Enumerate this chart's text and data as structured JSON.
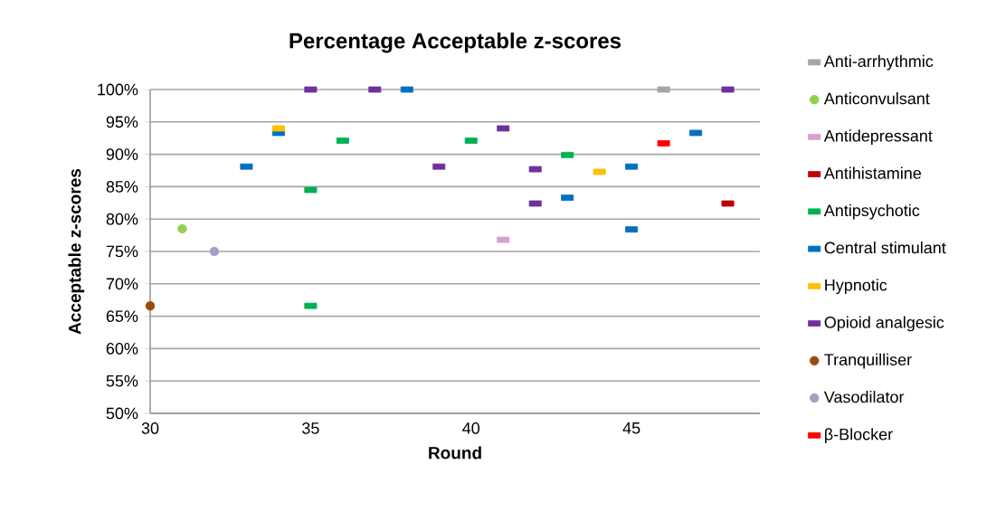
{
  "chart_data": {
    "type": "scatter",
    "title": "Percentage Acceptable z-scores",
    "xlabel": "Round",
    "ylabel": "Acceptable z-scores",
    "xlim": [
      30,
      49
    ],
    "xticks": [
      30,
      35,
      40,
      45
    ],
    "ylim": [
      50,
      100
    ],
    "yticks": [
      {
        "value": 50,
        "label": "50%"
      },
      {
        "value": 55,
        "label": "55%"
      },
      {
        "value": 60,
        "label": "60%"
      },
      {
        "value": 65,
        "label": "65%"
      },
      {
        "value": 70,
        "label": "70%"
      },
      {
        "value": 75,
        "label": "75%"
      },
      {
        "value": 80,
        "label": "80%"
      },
      {
        "value": 85,
        "label": "85%"
      },
      {
        "value": 90,
        "label": "90%"
      },
      {
        "value": 95,
        "label": "95%"
      },
      {
        "value": 100,
        "label": "100%"
      }
    ],
    "grid": "y",
    "legend": "right",
    "series": [
      {
        "name": "Anti-arrhythmic",
        "color": "#a5a5a5",
        "marker": "square",
        "x": [
          46
        ],
        "values": [
          100
        ]
      },
      {
        "name": "Anticonvulsant",
        "color": "#92d050",
        "marker": "circle",
        "x": [
          31
        ],
        "values": [
          78.5
        ]
      },
      {
        "name": "Antidepressant",
        "color": "#d9a0c8",
        "marker": "square",
        "x": [
          41
        ],
        "values": [
          76.8
        ]
      },
      {
        "name": "Antihistamine",
        "color": "#c00000",
        "marker": "square",
        "x": [
          48
        ],
        "values": [
          82.4
        ]
      },
      {
        "name": "Antipsychotic",
        "color": "#00b050",
        "marker": "square",
        "x": [
          35,
          35,
          36,
          40,
          43
        ],
        "values": [
          84.5,
          66.6,
          92.1,
          92.1,
          89.9
        ]
      },
      {
        "name": "Central stimulant",
        "color": "#0070c0",
        "marker": "square",
        "x": [
          33,
          34,
          38,
          43,
          45,
          45,
          47
        ],
        "values": [
          88.1,
          93.3,
          100,
          83.3,
          88.1,
          78.4,
          93.3
        ]
      },
      {
        "name": "Hypnotic",
        "color": "#ffc000",
        "marker": "square",
        "x": [
          34,
          44
        ],
        "values": [
          94,
          87.3
        ]
      },
      {
        "name": "Opioid analgesic",
        "color": "#7030a0",
        "marker": "square",
        "x": [
          35,
          37,
          39,
          41,
          42,
          42,
          48
        ],
        "values": [
          100,
          100,
          88.1,
          94,
          87.7,
          82.4,
          100
        ]
      },
      {
        "name": "Tranquilliser",
        "color": "#9c4a0b",
        "marker": "circle",
        "x": [
          30
        ],
        "values": [
          66.6
        ]
      },
      {
        "name": "Vasodilator",
        "color": "#a99bc4",
        "marker": "circle",
        "x": [
          32
        ],
        "values": [
          75
        ]
      },
      {
        "name": "β-Blocker",
        "color": "#ff0000",
        "marker": "square",
        "x": [
          46
        ],
        "values": [
          91.7
        ]
      }
    ]
  }
}
